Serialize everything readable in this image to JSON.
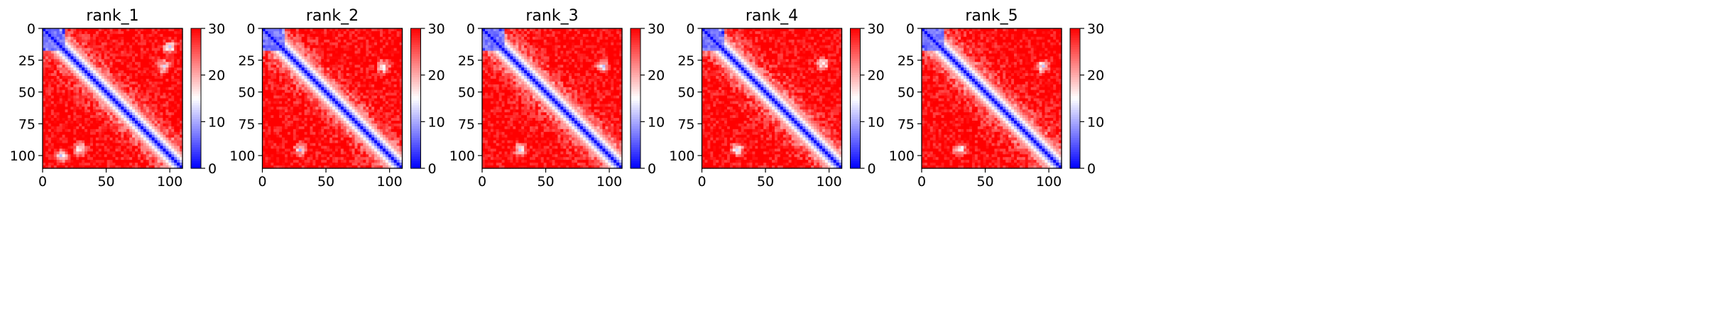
{
  "chart_data": [
    {
      "type": "heatmap",
      "title": "rank_1",
      "xlim": [
        0,
        110
      ],
      "ylim": [
        110,
        0
      ],
      "xticks": [
        0,
        50,
        100
      ],
      "yticks": [
        0,
        25,
        50,
        75,
        100
      ],
      "colorbar": {
        "range": [
          0,
          30
        ],
        "ticks": [
          0,
          10,
          20,
          30
        ]
      },
      "colormap": [
        "#0000ff",
        "#ffffff",
        "#ff0000"
      ],
      "diagonal_band": "blue",
      "blue_spots": [
        [
          15,
          100
        ],
        [
          30,
          95
        ],
        [
          100,
          15
        ],
        [
          95,
          30
        ]
      ]
    },
    {
      "type": "heatmap",
      "title": "rank_2",
      "xlim": [
        0,
        110
      ],
      "ylim": [
        110,
        0
      ],
      "xticks": [
        0,
        50,
        100
      ],
      "yticks": [
        0,
        25,
        50,
        75,
        100
      ],
      "colorbar": {
        "range": [
          0,
          30
        ],
        "ticks": [
          0,
          10,
          20,
          30
        ]
      },
      "colormap": [
        "#0000ff",
        "#ffffff",
        "#ff0000"
      ],
      "diagonal_band": "blue",
      "blue_spots": [
        [
          30,
          95
        ],
        [
          95,
          30
        ]
      ]
    },
    {
      "type": "heatmap",
      "title": "rank_3",
      "xlim": [
        0,
        110
      ],
      "ylim": [
        110,
        0
      ],
      "xticks": [
        0,
        50,
        100
      ],
      "yticks": [
        0,
        25,
        50,
        75,
        100
      ],
      "colorbar": {
        "range": [
          0,
          30
        ],
        "ticks": [
          0,
          10,
          20,
          30
        ]
      },
      "colormap": [
        "#0000ff",
        "#ffffff",
        "#ff0000"
      ],
      "diagonal_band": "blue",
      "blue_spots": [
        [
          30,
          95
        ],
        [
          95,
          30
        ]
      ]
    },
    {
      "type": "heatmap",
      "title": "rank_4",
      "xlim": [
        0,
        110
      ],
      "ylim": [
        110,
        0
      ],
      "xticks": [
        0,
        50,
        100
      ],
      "yticks": [
        0,
        25,
        50,
        75,
        100
      ],
      "colorbar": {
        "range": [
          0,
          30
        ],
        "ticks": [
          0,
          10,
          20,
          30
        ]
      },
      "colormap": [
        "#0000ff",
        "#ffffff",
        "#ff0000"
      ],
      "diagonal_band": "blue",
      "blue_spots": [
        [
          28,
          95
        ],
        [
          95,
          28
        ]
      ]
    },
    {
      "type": "heatmap",
      "title": "rank_5",
      "xlim": [
        0,
        110
      ],
      "ylim": [
        110,
        0
      ],
      "xticks": [
        0,
        50,
        100
      ],
      "yticks": [
        0,
        25,
        50,
        75,
        100
      ],
      "colorbar": {
        "range": [
          0,
          30
        ],
        "ticks": [
          0,
          10,
          20,
          30
        ]
      },
      "colormap": [
        "#0000ff",
        "#ffffff",
        "#ff0000"
      ],
      "diagonal_band": "blue",
      "blue_spots": [
        [
          30,
          95
        ],
        [
          95,
          30
        ]
      ]
    }
  ]
}
